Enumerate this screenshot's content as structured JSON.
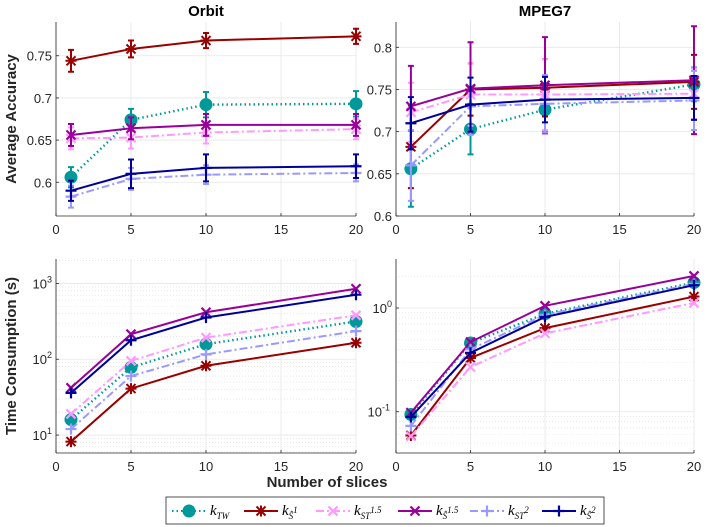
{
  "legend": {
    "entries": [
      {
        "id": "kTW",
        "base": "k",
        "sub": "TW",
        "subsub": "",
        "supsub": "",
        "color": "#009999",
        "line": "dotted",
        "marker": "circle"
      },
      {
        "id": "kS1",
        "base": "k",
        "sub": "Ŝ",
        "subsub": "1",
        "supsub": "1",
        "color": "#990000",
        "line": "solid",
        "marker": "asterisk"
      },
      {
        "id": "kST15",
        "base": "k",
        "sub": "ST",
        "subsub": "1.5",
        "supsub": "1.5",
        "color": "#ff99ff",
        "line": "dashdot",
        "marker": "x"
      },
      {
        "id": "kS15",
        "base": "k",
        "sub": "Ŝ",
        "subsub": "1.5",
        "supsub": "1.5",
        "color": "#990099",
        "line": "solid",
        "marker": "x"
      },
      {
        "id": "kST2",
        "base": "k",
        "sub": "ST",
        "subsub": "2",
        "supsub": "2",
        "color": "#9999ff",
        "line": "dashdot",
        "marker": "plus"
      },
      {
        "id": "kS2",
        "base": "k",
        "sub": "Ŝ",
        "subsub": "2",
        "supsub": "2",
        "color": "#000099",
        "line": "solid",
        "marker": "plus"
      }
    ]
  },
  "shared": {
    "xlabel": "Number of slices",
    "ylabel_top": "Average Accuracy",
    "ylabel_bottom": "Time Consumption (s)"
  },
  "chart_data": [
    {
      "type": "line",
      "panel": "top-left",
      "title": "Orbit",
      "xlabel": "",
      "ylabel": "Average Accuracy",
      "x": [
        1,
        5,
        10,
        20
      ],
      "xlim": [
        0,
        20
      ],
      "ylim": [
        0.56,
        0.79
      ],
      "yscale": "linear",
      "xticks": [
        0,
        5,
        10,
        15,
        20
      ],
      "yticks": [
        0.6,
        0.65,
        0.7,
        0.75
      ],
      "ytick_labels": [
        "0.6",
        "0.65",
        "0.7",
        "0.75"
      ],
      "grid": true,
      "error_bars": true,
      "series": [
        {
          "name": "kTW",
          "values": [
            0.606,
            0.674,
            0.692,
            0.693
          ],
          "errors": [
            0.012,
            0.013,
            0.015,
            0.015
          ]
        },
        {
          "name": "kS1",
          "values": [
            0.744,
            0.758,
            0.768,
            0.773
          ],
          "errors": [
            0.013,
            0.01,
            0.009,
            0.009
          ]
        },
        {
          "name": "kST15",
          "values": [
            0.652,
            0.653,
            0.659,
            0.663
          ],
          "errors": [
            0.013,
            0.013,
            0.013,
            0.012
          ]
        },
        {
          "name": "kS15",
          "values": [
            0.656,
            0.664,
            0.668,
            0.668
          ],
          "errors": [
            0.013,
            0.013,
            0.013,
            0.013
          ]
        },
        {
          "name": "kST2",
          "values": [
            0.583,
            0.604,
            0.609,
            0.611
          ],
          "errors": [
            0.013,
            0.013,
            0.011,
            0.01
          ]
        },
        {
          "name": "kS2",
          "values": [
            0.59,
            0.61,
            0.617,
            0.619
          ],
          "errors": [
            0.012,
            0.017,
            0.016,
            0.014
          ]
        }
      ]
    },
    {
      "type": "line",
      "panel": "top-right",
      "title": "MPEG7",
      "xlabel": "",
      "ylabel": "",
      "x": [
        1,
        5,
        10,
        20
      ],
      "xlim": [
        0,
        20
      ],
      "ylim": [
        0.6,
        0.83
      ],
      "yscale": "linear",
      "xticks": [
        0,
        5,
        10,
        15,
        20
      ],
      "yticks": [
        0.6,
        0.65,
        0.7,
        0.75,
        0.8
      ],
      "ytick_labels": [
        "0.6",
        "0.65",
        "0.7",
        "0.75",
        "0.8"
      ],
      "grid": true,
      "error_bars": true,
      "series": [
        {
          "name": "kTW",
          "values": [
            0.656,
            0.703,
            0.726,
            0.756
          ],
          "errors": [
            0.045,
            0.03,
            0.025,
            0.02
          ]
        },
        {
          "name": "kS1",
          "values": [
            0.682,
            0.75,
            0.752,
            0.759
          ],
          "errors": [
            0.049,
            0.031,
            0.034,
            0.032
          ]
        },
        {
          "name": "kST15",
          "values": [
            0.723,
            0.744,
            0.744,
            0.745
          ],
          "errors": [
            0.035,
            0.037,
            0.042,
            0.03
          ]
        },
        {
          "name": "kS15",
          "values": [
            0.73,
            0.751,
            0.755,
            0.761
          ],
          "errors": [
            0.048,
            0.055,
            0.057,
            0.064
          ]
        },
        {
          "name": "kST2",
          "values": [
            0.66,
            0.73,
            0.733,
            0.737
          ],
          "errors": [
            0.042,
            0.034,
            0.034,
            0.035
          ]
        },
        {
          "name": "kS2",
          "values": [
            0.71,
            0.732,
            0.738,
            0.74
          ],
          "errors": [
            0.031,
            0.032,
            0.027,
            0.026
          ]
        }
      ]
    },
    {
      "type": "line",
      "panel": "bottom-left",
      "title": "",
      "xlabel": "",
      "ylabel": "Time Consumption (s)",
      "x": [
        1,
        5,
        10,
        20
      ],
      "xlim": [
        0,
        20
      ],
      "ylim": [
        5.8,
        2100
      ],
      "yscale": "log",
      "xticks": [
        0,
        5,
        10,
        15,
        20
      ],
      "yticks": [
        10,
        100,
        1000
      ],
      "ytick_labels": [
        [
          "10",
          "1"
        ],
        [
          "10",
          "2"
        ],
        [
          "10",
          "3"
        ]
      ],
      "grid": true,
      "minor_grid": true,
      "error_bars": false,
      "series": [
        {
          "name": "kTW",
          "values": [
            16,
            78,
            158,
            315
          ]
        },
        {
          "name": "kS1",
          "values": [
            8.2,
            41,
            82,
            165
          ]
        },
        {
          "name": "kST15",
          "values": [
            19,
            95,
            193,
            380
          ]
        },
        {
          "name": "kS15",
          "values": [
            42,
            214,
            417,
            850
          ]
        },
        {
          "name": "kST2",
          "values": [
            12,
            60,
            116,
            235
          ]
        },
        {
          "name": "kS2",
          "values": [
            36,
            178,
            355,
            710
          ]
        }
      ]
    },
    {
      "type": "line",
      "panel": "bottom-right",
      "title": "",
      "xlabel": "Number of slices",
      "ylabel": "",
      "x": [
        1,
        5,
        10,
        20
      ],
      "xlim": [
        0,
        20
      ],
      "ylim": [
        0.04,
        2.97
      ],
      "yscale": "log",
      "xticks": [
        0,
        5,
        10,
        15,
        20
      ],
      "yticks": [
        0.1,
        1
      ],
      "ytick_labels": [
        [
          "10",
          "-1"
        ],
        [
          "10",
          "0"
        ]
      ],
      "grid": true,
      "minor_grid": true,
      "error_bars": false,
      "series": [
        {
          "name": "kTW",
          "values": [
            0.094,
            0.46,
            0.88,
            1.76
          ]
        },
        {
          "name": "kS1",
          "values": [
            0.059,
            0.33,
            0.64,
            1.29
          ]
        },
        {
          "name": "kST15",
          "values": [
            0.058,
            0.27,
            0.57,
            1.12
          ]
        },
        {
          "name": "kS15",
          "values": [
            0.098,
            0.47,
            1.05,
            2.04
          ]
        },
        {
          "name": "kST2",
          "values": [
            0.073,
            0.4,
            0.86,
            1.71
          ]
        },
        {
          "name": "kS2",
          "values": [
            0.089,
            0.37,
            0.82,
            1.66
          ]
        }
      ]
    }
  ]
}
